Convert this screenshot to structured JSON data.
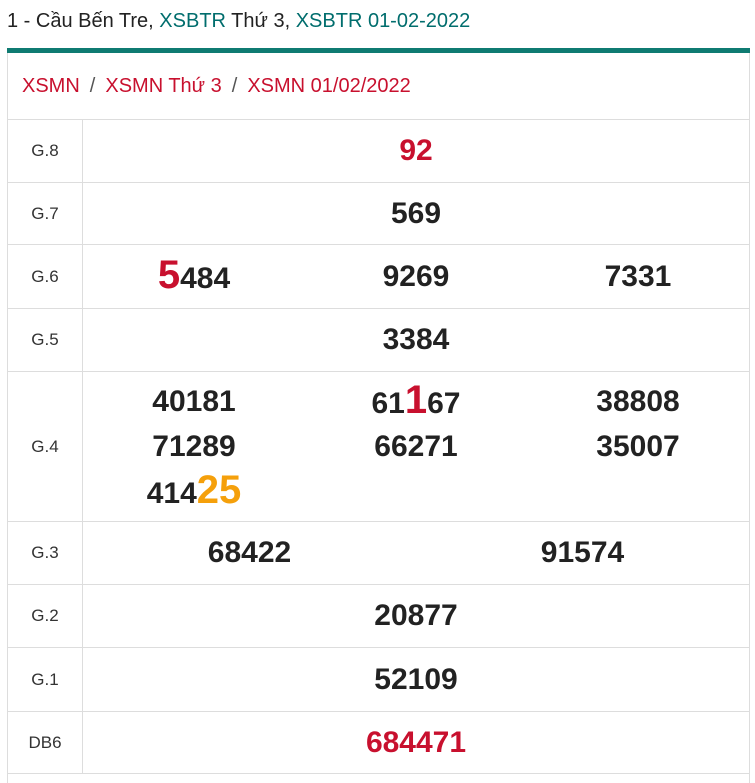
{
  "header": {
    "title": [
      {
        "text": "1 - Cầu Bến Tre, ",
        "color": "#222222"
      },
      {
        "text": "XSBTR",
        "color": "#006d6d",
        "link": true
      },
      {
        "text": " Thứ 3, ",
        "color": "#222222"
      },
      {
        "text": "XSBTR 01-02-2022",
        "color": "#006d6d",
        "link": true
      }
    ]
  },
  "breadcrumb": {
    "items": [
      "XSMN",
      "XSMN Thứ 3",
      "XSMN 01/02/2022"
    ],
    "separator": "/"
  },
  "table": {
    "rows": [
      {
        "label": "G.8",
        "numbers": [
          [
            {
              "text": "92",
              "color": "#c8102e"
            }
          ]
        ]
      },
      {
        "label": "G.7",
        "numbers": [
          [
            {
              "text": "569"
            }
          ]
        ]
      },
      {
        "label": "G.6",
        "numbers": [
          [
            {
              "text": "5",
              "color": "#c8102e",
              "big": true
            },
            {
              "text": "484"
            }
          ],
          [
            {
              "text": "9269"
            }
          ],
          [
            {
              "text": "7331"
            }
          ]
        ]
      },
      {
        "label": "G.5",
        "numbers": [
          [
            {
              "text": "3384"
            }
          ]
        ]
      },
      {
        "label": "G.4",
        "numbers": [
          [
            {
              "text": "40181"
            }
          ],
          [
            {
              "text": "61"
            },
            {
              "text": "1",
              "color": "#c8102e",
              "big": true
            },
            {
              "text": "67"
            }
          ],
          [
            {
              "text": "38808"
            }
          ],
          [
            {
              "text": "71289"
            }
          ],
          [
            {
              "text": "66271"
            }
          ],
          [
            {
              "text": "35007"
            }
          ],
          [
            {
              "text": "414"
            },
            {
              "text": "25",
              "color": "#f5a00b",
              "big": true
            }
          ]
        ]
      },
      {
        "label": "G.3",
        "numbers": [
          [
            {
              "text": "68422"
            }
          ],
          [
            {
              "text": "91574"
            }
          ]
        ]
      },
      {
        "label": "G.2",
        "numbers": [
          [
            {
              "text": "20877"
            }
          ]
        ]
      },
      {
        "label": "G.1",
        "numbers": [
          [
            {
              "text": "52109"
            }
          ]
        ]
      },
      {
        "label": "DB6",
        "numbers": [
          [
            {
              "text": "684471",
              "color": "#c8102e"
            }
          ]
        ]
      }
    ]
  }
}
